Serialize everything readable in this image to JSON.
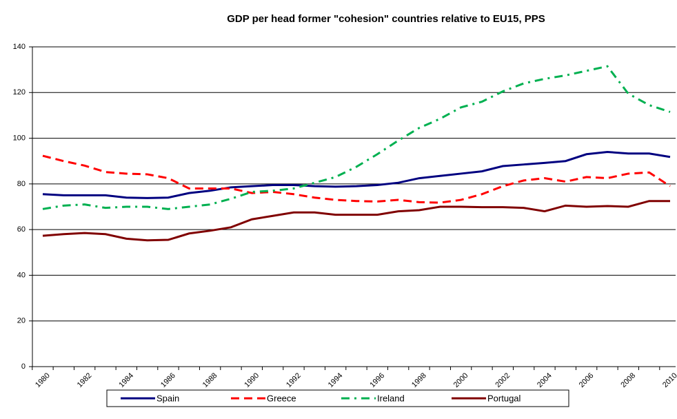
{
  "chart_data": {
    "type": "line",
    "title": "GDP per head former \"cohesion\" countries relative to EU15, PPS",
    "categories": [
      "1980",
      null,
      "1982",
      null,
      "1984",
      null,
      "1986",
      null,
      "1988",
      null,
      "1990",
      null,
      "1992",
      null,
      "1994",
      null,
      "1996",
      null,
      "1998",
      null,
      "2000",
      null,
      "2002",
      null,
      "2004",
      null,
      "2006",
      null,
      "2008",
      null,
      "2010"
    ],
    "series": [
      {
        "name": "Spain",
        "color": "#000080",
        "dash": "solid",
        "values": [
          75.5,
          75,
          75,
          75,
          74,
          73.8,
          74,
          76,
          77,
          78.5,
          79,
          79.5,
          79.5,
          79,
          78.8,
          79,
          79.5,
          80.5,
          82.5,
          83.5,
          84.5,
          85.5,
          87.8,
          88.5,
          89.2,
          90,
          93,
          94,
          93.3,
          93.3,
          91.8
        ]
      },
      {
        "name": "Greece",
        "color": "#ff0000",
        "dash": "dashed",
        "values": [
          92.3,
          90,
          88,
          85.2,
          84.5,
          84.2,
          82.5,
          78,
          78,
          78,
          76,
          76.5,
          75.5,
          74,
          73,
          72.5,
          72.3,
          73,
          72,
          71.8,
          73,
          75.5,
          79,
          81.5,
          82.5,
          81,
          83,
          82.5,
          84.5,
          85,
          79
        ]
      },
      {
        "name": "Ireland",
        "color": "#00b050",
        "dash": "dashdot",
        "values": [
          69,
          70.5,
          71,
          69.5,
          70,
          70,
          69,
          70,
          71,
          73.5,
          76.5,
          77,
          78,
          80.5,
          83,
          87.5,
          93,
          99,
          104.5,
          108.5,
          113.5,
          116,
          120.5,
          124,
          126,
          127.5,
          129.5,
          131.5,
          119.5,
          114.5,
          111.5
        ]
      },
      {
        "name": "Portugal",
        "color": "#800000",
        "dash": "solid",
        "values": [
          57.3,
          58,
          58.5,
          58,
          56,
          55.3,
          55.5,
          58.3,
          59.5,
          61,
          64.5,
          66,
          67.5,
          67.5,
          66.5,
          66.5,
          66.5,
          68,
          68.5,
          70,
          70,
          69.8,
          69.8,
          69.5,
          68,
          70.5,
          70,
          70.3,
          70,
          72.5,
          72.5
        ]
      }
    ],
    "ylim": [
      0,
      140
    ],
    "yticks": [
      0,
      20,
      40,
      60,
      80,
      100,
      120,
      140
    ],
    "grid": true,
    "legend": "bottom"
  }
}
